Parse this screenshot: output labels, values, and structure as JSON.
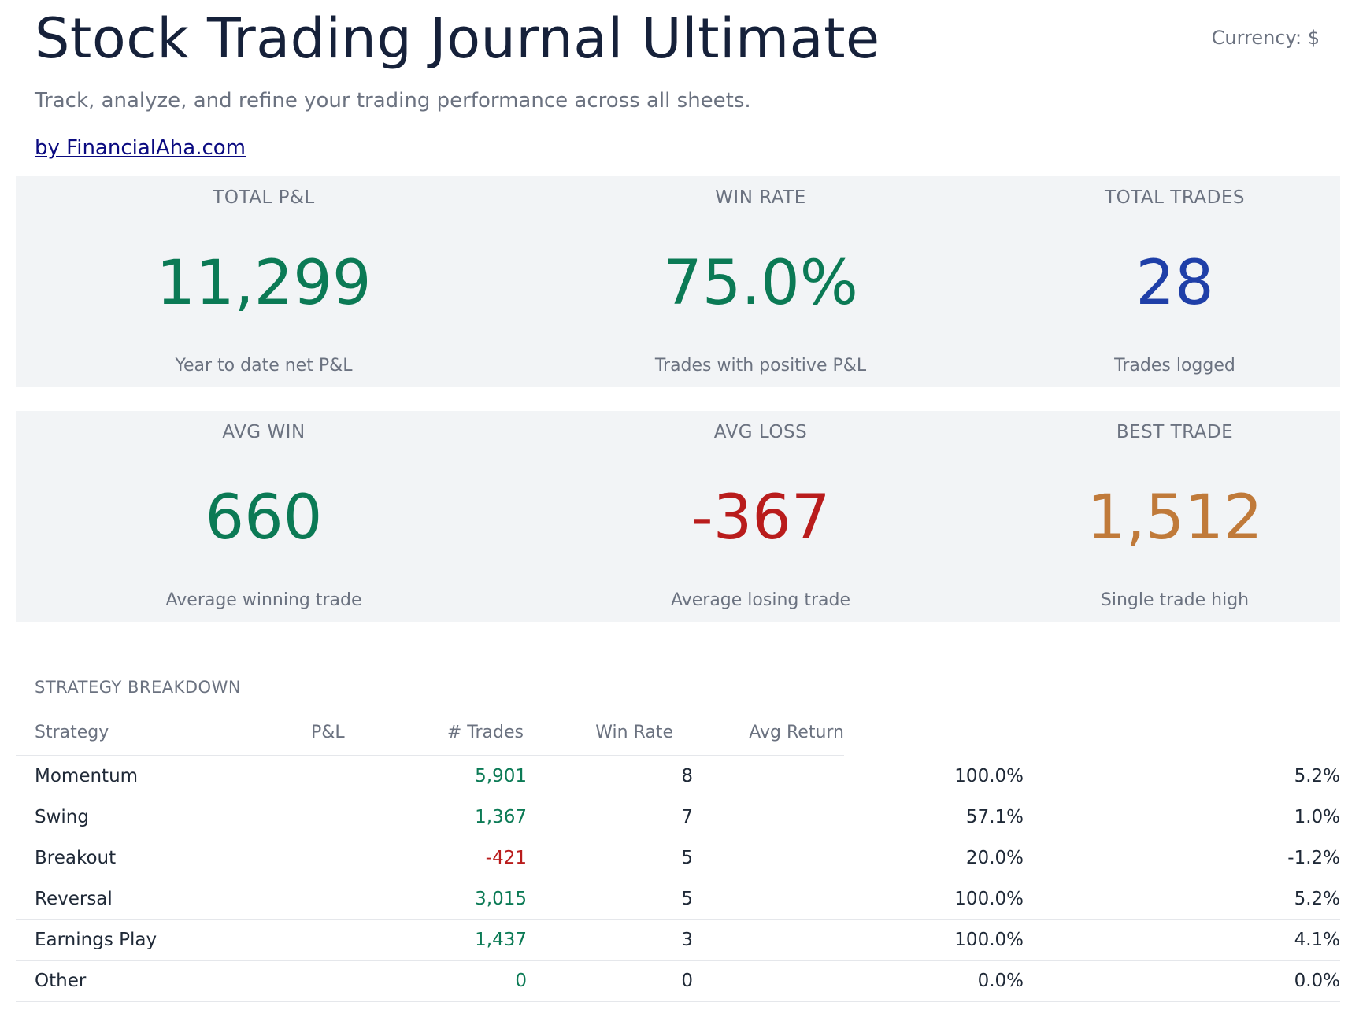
{
  "header": {
    "title": "Stock Trading Journal Ultimate",
    "currency": "Currency: $",
    "subtitle": "Track, analyze, and refine your trading performance across all sheets.",
    "byline": "by FinancialAha.com"
  },
  "kpis": [
    {
      "label": "TOTAL P&L",
      "value": "11,299",
      "caption": "Year to date net P&L",
      "color": "#0b7a55"
    },
    {
      "label": "WIN RATE",
      "value": "75.0%",
      "caption": "Trades with positive P&L",
      "color": "#0b7a55"
    },
    {
      "label": "TOTAL TRADES",
      "value": "28",
      "caption": "Trades logged",
      "color": "#1f3fa8"
    },
    {
      "label": "AVG WIN",
      "value": "660",
      "caption": "Average winning trade",
      "color": "#0b7a55"
    },
    {
      "label": "AVG LOSS",
      "value": "-367",
      "caption": "Average losing trade",
      "color": "#b91c1c"
    },
    {
      "label": "BEST TRADE",
      "value": "1,512",
      "caption": "Single trade high",
      "color": "#c07a3a"
    }
  ],
  "strategy": {
    "section_title": "STRATEGY BREAKDOWN",
    "columns": [
      "Strategy",
      "P&L",
      "# Trades",
      "Win Rate",
      "Avg Return"
    ],
    "rows": [
      {
        "name": "Momentum",
        "pnl": "5,901",
        "trades": "8",
        "win_rate": "100.0%",
        "avg_return": "5.2%"
      },
      {
        "name": "Swing",
        "pnl": "1,367",
        "trades": "7",
        "win_rate": "57.1%",
        "avg_return": "1.0%"
      },
      {
        "name": "Breakout",
        "pnl": "-421",
        "trades": "5",
        "win_rate": "20.0%",
        "avg_return": "-1.2%"
      },
      {
        "name": "Reversal",
        "pnl": "3,015",
        "trades": "5",
        "win_rate": "100.0%",
        "avg_return": "5.2%"
      },
      {
        "name": "Earnings Play",
        "pnl": "1,437",
        "trades": "3",
        "win_rate": "100.0%",
        "avg_return": "4.1%"
      },
      {
        "name": "Other",
        "pnl": "0",
        "trades": "0",
        "win_rate": "0.0%",
        "avg_return": "0.0%"
      }
    ]
  },
  "colors": {
    "positive": "#0b7a55",
    "negative": "#b91c1c"
  }
}
